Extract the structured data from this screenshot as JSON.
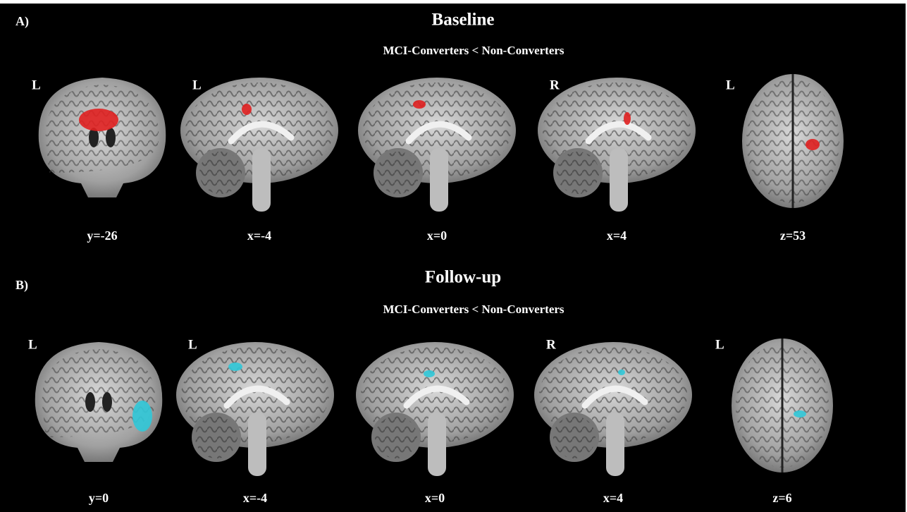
{
  "figure": {
    "panels": [
      {
        "label": "A)",
        "title": "Baseline",
        "subtitle": "MCI-Converters < Non-Converters",
        "images": [
          {
            "side": "L",
            "coordinate": "y=-26"
          },
          {
            "side": "L",
            "coordinate": "x=-4"
          },
          {
            "side": null,
            "coordinate": "x=0"
          },
          {
            "side": "R",
            "coordinate": "x=4"
          },
          {
            "side": "L",
            "coordinate": "z=53"
          }
        ]
      },
      {
        "label": "B)",
        "title": "Follow-up",
        "subtitle": "MCI-Converters < Non-Converters",
        "images": [
          {
            "side": "L",
            "coordinate": "y=0"
          },
          {
            "side": "L",
            "coordinate": "x=-4"
          },
          {
            "side": null,
            "coordinate": "x=0"
          },
          {
            "side": "R",
            "coordinate": "x=4"
          },
          {
            "side": "L",
            "coordinate": "z=6"
          }
        ]
      }
    ]
  }
}
